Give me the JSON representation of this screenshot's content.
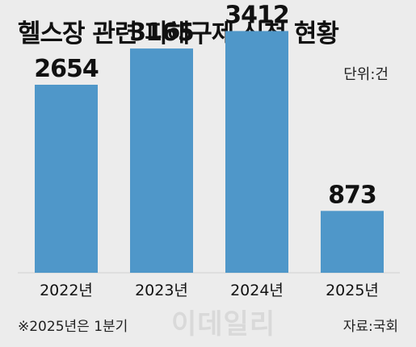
{
  "title": "헬스장 관련 피해구제 신청 현황",
  "unit_label": "단위:건",
  "note": "※2025년은 1분기",
  "source": "자료:국회",
  "watermark": "이데일리",
  "colors": {
    "bar": "#4f97c9",
    "background": "#ececec"
  },
  "chart_data": {
    "type": "bar",
    "categories": [
      "2022년",
      "2023년",
      "2024년",
      "2025년"
    ],
    "values": [
      2654,
      3165,
      3412,
      873
    ],
    "title": "헬스장 관련 피해구제 신청 현황",
    "xlabel": "",
    "ylabel": "",
    "ylim": [
      0,
      3850
    ],
    "grid": false
  }
}
